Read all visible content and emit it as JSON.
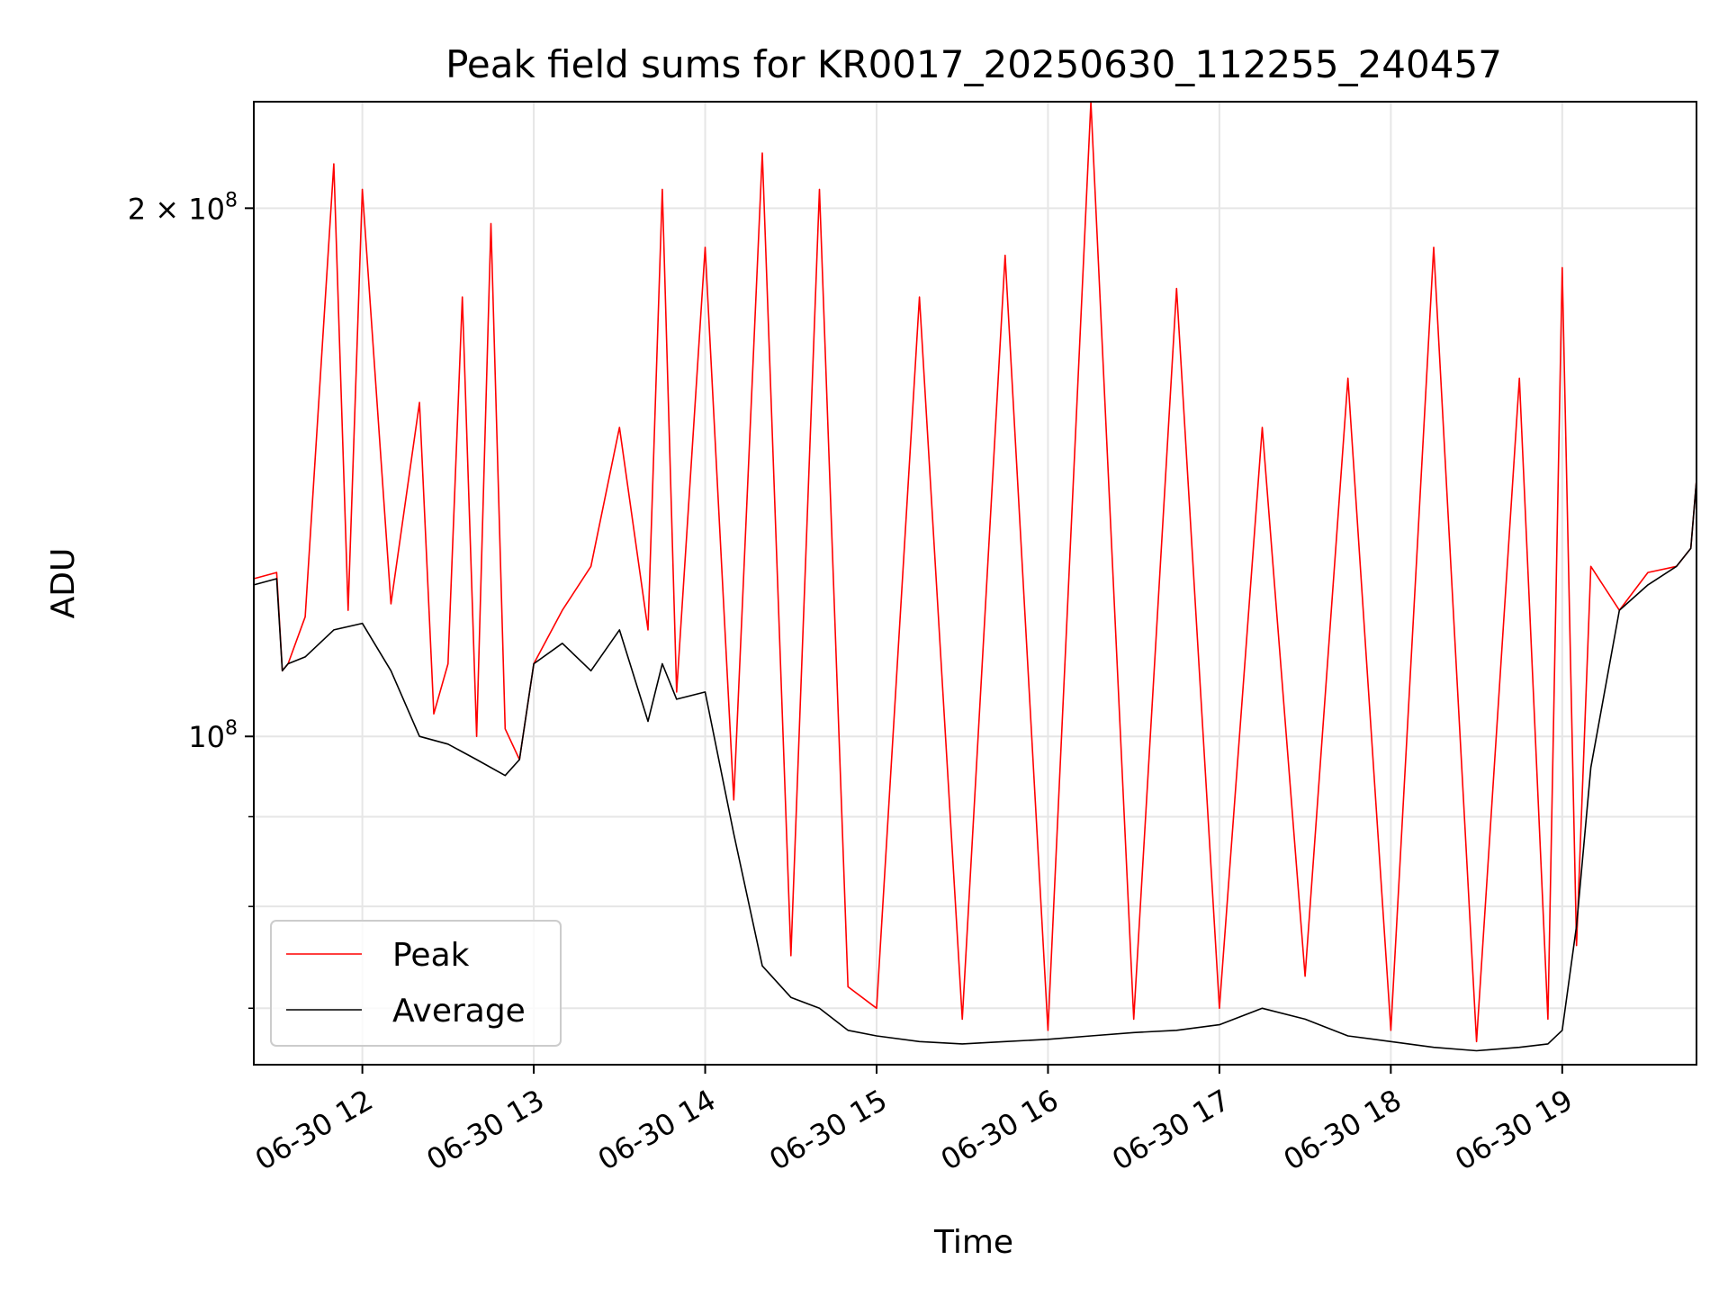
{
  "chart_data": {
    "type": "line",
    "title": "Peak field sums for KR0017_20250630_112255_240457",
    "xlabel": "Time",
    "ylabel": "ADU",
    "yscale": "log",
    "xlim": [
      "2025-06-30 11:22",
      "2025-06-30 19:47"
    ],
    "ylim": [
      65000000,
      230000000
    ],
    "x_ticks": [
      {
        "at": "2025-06-30 12:00",
        "label": "06-30 12"
      },
      {
        "at": "2025-06-30 13:00",
        "label": "06-30 13"
      },
      {
        "at": "2025-06-30 14:00",
        "label": "06-30 14"
      },
      {
        "at": "2025-06-30 15:00",
        "label": "06-30 15"
      },
      {
        "at": "2025-06-30 16:00",
        "label": "06-30 16"
      },
      {
        "at": "2025-06-30 17:00",
        "label": "06-30 17"
      },
      {
        "at": "2025-06-30 18:00",
        "label": "06-30 18"
      },
      {
        "at": "2025-06-30 19:00",
        "label": "06-30 19"
      }
    ],
    "y_ticks_major": [
      {
        "value": 100000000,
        "base": "10",
        "exp": "8"
      },
      {
        "value": 200000000,
        "mantissa": "2 × ",
        "base": "10",
        "exp": "8"
      }
    ],
    "y_ticks_minor": [
      70000000,
      80000000,
      90000000
    ],
    "grid": true,
    "legend_position": "lower left",
    "series": [
      {
        "name": "Peak",
        "color": "#ff0000",
        "x": [
          "2025-06-30 11:22",
          "2025-06-30 11:30",
          "2025-06-30 11:32",
          "2025-06-30 11:34",
          "2025-06-30 11:40",
          "2025-06-30 11:50",
          "2025-06-30 11:55",
          "2025-06-30 12:00",
          "2025-06-30 12:10",
          "2025-06-30 12:20",
          "2025-06-30 12:25",
          "2025-06-30 12:30",
          "2025-06-30 12:35",
          "2025-06-30 12:40",
          "2025-06-30 12:45",
          "2025-06-30 12:50",
          "2025-06-30 12:55",
          "2025-06-30 13:00",
          "2025-06-30 13:10",
          "2025-06-30 13:20",
          "2025-06-30 13:30",
          "2025-06-30 13:40",
          "2025-06-30 13:45",
          "2025-06-30 13:50",
          "2025-06-30 14:00",
          "2025-06-30 14:10",
          "2025-06-30 14:20",
          "2025-06-30 14:30",
          "2025-06-30 14:40",
          "2025-06-30 14:50",
          "2025-06-30 15:00",
          "2025-06-30 15:15",
          "2025-06-30 15:30",
          "2025-06-30 15:45",
          "2025-06-30 16:00",
          "2025-06-30 16:15",
          "2025-06-30 16:30",
          "2025-06-30 16:45",
          "2025-06-30 17:00",
          "2025-06-30 17:15",
          "2025-06-30 17:30",
          "2025-06-30 17:45",
          "2025-06-30 18:00",
          "2025-06-30 18:15",
          "2025-06-30 18:30",
          "2025-06-30 18:45",
          "2025-06-30 18:55",
          "2025-06-30 19:00",
          "2025-06-30 19:05",
          "2025-06-30 19:10",
          "2025-06-30 19:20",
          "2025-06-30 19:30",
          "2025-06-30 19:40",
          "2025-06-30 19:45",
          "2025-06-30 19:47"
        ],
        "y": [
          123000000,
          124000000,
          109000000,
          110000000,
          117000000,
          212000000,
          118000000,
          205000000,
          119000000,
          155000000,
          103000000,
          110000000,
          178000000,
          100000000,
          196000000,
          101000000,
          97000000,
          110000000,
          118000000,
          125000000,
          150000000,
          115000000,
          205000000,
          106000000,
          190000000,
          92000000,
          215000000,
          75000000,
          205000000,
          72000000,
          70000000,
          178000000,
          69000000,
          188000000,
          68000000,
          230000000,
          69000000,
          180000000,
          70000000,
          150000000,
          73000000,
          160000000,
          68000000,
          190000000,
          67000000,
          160000000,
          69000000,
          185000000,
          76000000,
          125000000,
          118000000,
          124000000,
          125000000,
          128000000,
          140000000
        ]
      },
      {
        "name": "Average",
        "color": "#000000",
        "x": [
          "2025-06-30 11:22",
          "2025-06-30 11:30",
          "2025-06-30 11:32",
          "2025-06-30 11:34",
          "2025-06-30 11:40",
          "2025-06-30 11:50",
          "2025-06-30 12:00",
          "2025-06-30 12:10",
          "2025-06-30 12:20",
          "2025-06-30 12:30",
          "2025-06-30 12:40",
          "2025-06-30 12:50",
          "2025-06-30 12:55",
          "2025-06-30 13:00",
          "2025-06-30 13:10",
          "2025-06-30 13:20",
          "2025-06-30 13:30",
          "2025-06-30 13:40",
          "2025-06-30 13:45",
          "2025-06-30 13:50",
          "2025-06-30 14:00",
          "2025-06-30 14:10",
          "2025-06-30 14:20",
          "2025-06-30 14:30",
          "2025-06-30 14:40",
          "2025-06-30 14:50",
          "2025-06-30 15:00",
          "2025-06-30 15:15",
          "2025-06-30 15:30",
          "2025-06-30 15:45",
          "2025-06-30 16:00",
          "2025-06-30 16:15",
          "2025-06-30 16:30",
          "2025-06-30 16:45",
          "2025-06-30 17:00",
          "2025-06-30 17:15",
          "2025-06-30 17:30",
          "2025-06-30 17:45",
          "2025-06-30 18:00",
          "2025-06-30 18:15",
          "2025-06-30 18:30",
          "2025-06-30 18:45",
          "2025-06-30 18:55",
          "2025-06-30 19:00",
          "2025-06-30 19:05",
          "2025-06-30 19:10",
          "2025-06-30 19:20",
          "2025-06-30 19:30",
          "2025-06-30 19:40",
          "2025-06-30 19:45",
          "2025-06-30 19:47"
        ],
        "y": [
          122000000,
          123000000,
          109000000,
          110000000,
          111000000,
          115000000,
          116000000,
          109000000,
          100000000,
          99000000,
          97000000,
          95000000,
          97000000,
          110000000,
          113000000,
          109000000,
          115000000,
          102000000,
          110000000,
          105000000,
          106000000,
          88000000,
          74000000,
          71000000,
          70000000,
          68000000,
          67500000,
          67000000,
          66800000,
          67000000,
          67200000,
          67500000,
          67800000,
          68000000,
          68500000,
          70000000,
          69000000,
          67500000,
          67000000,
          66500000,
          66200000,
          66500000,
          66800000,
          68000000,
          78000000,
          96000000,
          118000000,
          122000000,
          125000000,
          128000000,
          140000000
        ]
      }
    ]
  }
}
